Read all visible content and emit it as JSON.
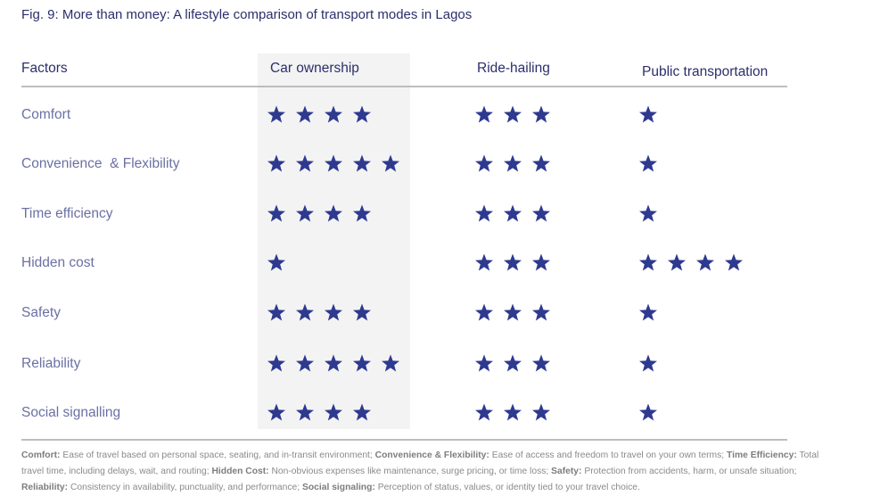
{
  "title": "Fig. 9: More than money: A lifestyle comparison of transport modes in Lagos",
  "table": {
    "columns": [
      "Factors",
      "Car ownership",
      "Ride-hailing",
      "Public transportation"
    ],
    "rows": [
      [
        "Comfort",
        4,
        3,
        1
      ],
      [
        "Convenience  & Flexibility",
        5,
        3,
        1
      ],
      [
        "Time efficiency",
        4,
        3,
        1
      ],
      [
        "Hidden cost",
        1,
        3,
        4
      ],
      [
        "Safety",
        4,
        3,
        1
      ],
      [
        "Reliability",
        5,
        3,
        1
      ],
      [
        "Social signalling",
        4,
        3,
        1
      ]
    ]
  },
  "footnote": [
    {
      "term": "Comfort:",
      "text": "Ease of travel based on personal space, seating, and in-transit environment;"
    },
    {
      "term": "Convenience & Flexibility:",
      "text": "Ease of access and freedom to travel on your own terms;"
    },
    {
      "term": "Time Efficiency:",
      "text": "Total travel time, including delays, wait, and routing;"
    },
    {
      "term": "Hidden Cost:",
      "text": "Non-obvious expenses like maintenance, surge pricing, or time loss;"
    },
    {
      "term": "Safety:",
      "text": "Protection from accidents, harm, or unsafe situation;"
    },
    {
      "term": "Reliability:",
      "text": "Consistency in availability, punctuality, and performance;"
    },
    {
      "term": "Social signaling:",
      "text": "Perception of status, values, or identity tied to your travel choice."
    }
  ]
}
